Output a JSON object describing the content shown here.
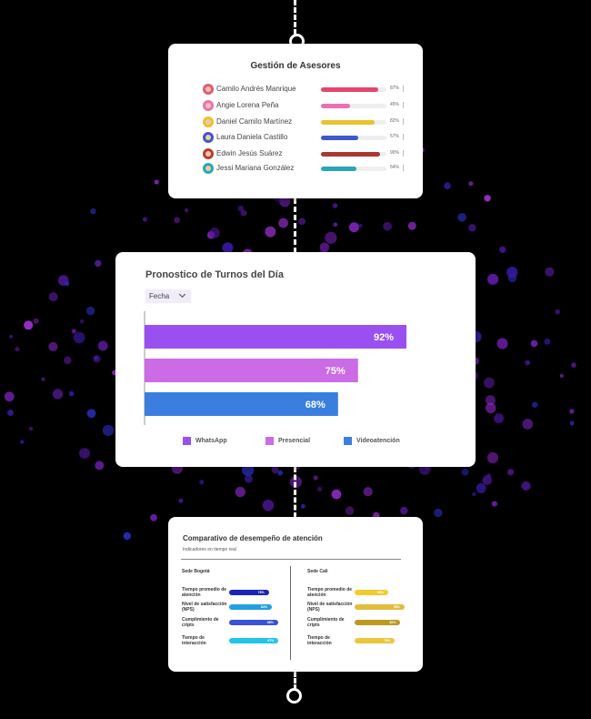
{
  "advisors_card": {
    "title": "Gestión de Asesores",
    "advisors": [
      {
        "name": "Camilo Andrés Manrique",
        "percent": 87,
        "percent_label": "87%",
        "color": "#e5456d",
        "avatar_color": "#e05a7a"
      },
      {
        "name": "Angie Lorena Peña",
        "percent": 45,
        "percent_label": "45%",
        "color": "#ec6fb5",
        "avatar_color": "#ec6fb5"
      },
      {
        "name": "Daniel Camilo Martínez",
        "percent": 82,
        "percent_label": "82%",
        "color": "#e9c22f",
        "avatar_color": "#e9c22f"
      },
      {
        "name": "Laura Daniela Castillo",
        "percent": 57,
        "percent_label": "57%",
        "color": "#3d59c9",
        "avatar_color": "#3d59c9"
      },
      {
        "name": "Edwin Jesús Suárez",
        "percent": 90,
        "percent_label": "90%",
        "color": "#a93930",
        "avatar_color": "#b14034"
      },
      {
        "name": "Jessi Mariana González",
        "percent": 54,
        "percent_label": "54%",
        "color": "#2aa6b6",
        "avatar_color": "#2aa6b6"
      }
    ]
  },
  "forecast_card": {
    "title": "Pronostico de Turnos del Día",
    "filter_label": "Fecha"
  },
  "chart_data": {
    "type": "bar",
    "orientation": "horizontal",
    "categories": [
      "WhatsApp",
      "Presencial",
      "Videoatención"
    ],
    "values": [
      92,
      75,
      68
    ],
    "value_labels": [
      "92%",
      "75%",
      "68%"
    ],
    "colors": [
      "#9a4ff0",
      "#cb6be5",
      "#3a7fe0"
    ],
    "xlim": [
      0,
      100
    ],
    "legend": "bottom",
    "grid": false
  },
  "comparison_card": {
    "title": "Comparativo de desempeño de atención",
    "subtitle": "Indicadores en tiempo real",
    "sedes": [
      {
        "name": "Sede Bogotá",
        "metrics": [
          {
            "label": "Tiempo promedio de atención",
            "value": 78,
            "value_label": "78%",
            "color": "#1a24b8"
          },
          {
            "label": "Nivel de satisfacción (NPS)",
            "value": 84,
            "value_label": "84%",
            "color": "#24a0e0"
          },
          {
            "label": "Cumplimiento de cripts",
            "value": 96,
            "value_label": "96%",
            "color": "#3a52d6"
          },
          {
            "label": "Tiempo de interacción",
            "value": 97,
            "value_label": "97%",
            "color": "#22c4e8"
          }
        ]
      },
      {
        "name": "Sede Cali",
        "metrics": [
          {
            "label": "Tiempo promedio de atención",
            "value": 66,
            "value_label": "66%",
            "color": "#f2cc2c"
          },
          {
            "label": "Nivel de satisfacción (NPS)",
            "value": 98,
            "value_label": "98%",
            "color": "#e2bd3b"
          },
          {
            "label": "Cumplimiento de cripts",
            "value": 90,
            "value_label": "90%",
            "color": "#bd9922"
          },
          {
            "label": "Tiempo de interacción",
            "value": 79,
            "value_label": "79%",
            "color": "#e9c63c"
          }
        ]
      }
    ]
  }
}
